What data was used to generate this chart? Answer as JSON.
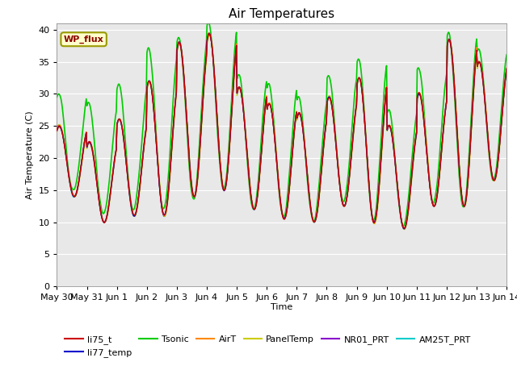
{
  "title": "Air Temperatures",
  "xlabel": "Time",
  "ylabel": "Air Temperature (C)",
  "ylim": [
    0,
    41
  ],
  "yticks": [
    0,
    5,
    10,
    15,
    20,
    25,
    30,
    35,
    40
  ],
  "num_days": 15,
  "series": {
    "li75_t": {
      "color": "#cc0000",
      "lw": 1.0,
      "zorder": 3
    },
    "li77_temp": {
      "color": "#0000cc",
      "lw": 1.0,
      "zorder": 3
    },
    "Tsonic": {
      "color": "#00cc00",
      "lw": 1.2,
      "zorder": 2
    },
    "AirT": {
      "color": "#ff8800",
      "lw": 1.0,
      "zorder": 3
    },
    "PanelTemp": {
      "color": "#cccc00",
      "lw": 1.0,
      "zorder": 3
    },
    "NR01_PRT": {
      "color": "#8800cc",
      "lw": 1.0,
      "zorder": 3
    },
    "AM25T_PRT": {
      "color": "#00cccc",
      "lw": 1.0,
      "zorder": 3
    }
  },
  "wp_flux_label": "WP_flux",
  "background_color": "#e8e8e8",
  "xtick_labels": [
    "May 30",
    "May 31",
    "Jun 1",
    "Jun 2",
    "Jun 3",
    "Jun 4",
    "Jun 5",
    "Jun 6",
    "Jun 7",
    "Jun 8",
    "Jun 9",
    "Jun 10",
    "Jun 11",
    "Jun 12",
    "Jun 13",
    "Jun 14"
  ],
  "xtick_positions": [
    0,
    1,
    2,
    3,
    4,
    5,
    6,
    7,
    8,
    9,
    10,
    11,
    12,
    13,
    14,
    15
  ]
}
